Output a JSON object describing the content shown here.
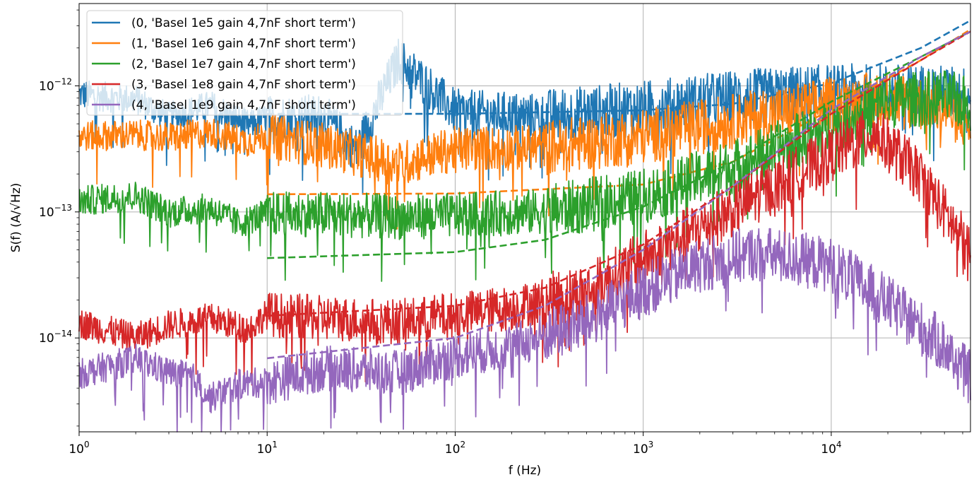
{
  "chart_data": {
    "type": "line",
    "title": "",
    "xlabel": "f (Hz)",
    "ylabel": "S(f) (A/√Hz)",
    "x_scale": "log",
    "y_scale": "log",
    "xlim": [
      1,
      55000
    ],
    "ylim": [
      1.8e-15,
      4.5e-12
    ],
    "x_ticks": [
      {
        "value": 1,
        "base": "10",
        "exp": "0"
      },
      {
        "value": 10,
        "base": "10",
        "exp": "1"
      },
      {
        "value": 100,
        "base": "10",
        "exp": "2"
      },
      {
        "value": 1000,
        "base": "10",
        "exp": "3"
      },
      {
        "value": 10000,
        "base": "10",
        "exp": "4"
      }
    ],
    "y_ticks": [
      {
        "value": 1e-14,
        "base": "10",
        "exp": "−14"
      },
      {
        "value": 1e-13,
        "base": "10",
        "exp": "−13"
      },
      {
        "value": 1e-12,
        "base": "10",
        "exp": "−12"
      }
    ],
    "grid": true,
    "legend_position": "top-left",
    "series": [
      {
        "name": "(0, 'Basel 1e5 gain 4,7nF short term')",
        "color": "#1f77b4",
        "measured": [
          [
            1,
            8.8e-13
          ],
          [
            2,
            8e-13
          ],
          [
            3,
            5.8e-13
          ],
          [
            5,
            7.2e-13
          ],
          [
            8,
            5e-13
          ],
          [
            10,
            5.8e-13
          ],
          [
            20,
            6e-13
          ],
          [
            30,
            3.2e-13
          ],
          [
            50,
            1.7e-12
          ],
          [
            100,
            6.5e-13
          ],
          [
            300,
            6e-13
          ],
          [
            1000,
            7e-13
          ],
          [
            3000,
            8.5e-13
          ],
          [
            10000,
            9.5e-13
          ],
          [
            30000,
            9.5e-13
          ],
          [
            55000,
            9e-13
          ]
        ],
        "model": [
          [
            10,
            6e-13
          ],
          [
            100,
            6e-13
          ],
          [
            1000,
            6.4e-13
          ],
          [
            3000,
            7.2e-13
          ],
          [
            10000,
            1.05e-12
          ],
          [
            30000,
            2e-12
          ],
          [
            55000,
            3.3e-12
          ]
        ]
      },
      {
        "name": "(1, 'Basel 1e6 gain 4,7nF short term')",
        "color": "#ff7f0e",
        "measured": [
          [
            1,
            4.1e-13
          ],
          [
            2,
            4.2e-13
          ],
          [
            3,
            4e-13
          ],
          [
            5,
            4.4e-13
          ],
          [
            8,
            3.7e-13
          ],
          [
            10,
            4.2e-13
          ],
          [
            20,
            3.5e-13
          ],
          [
            50,
            2.5e-13
          ],
          [
            100,
            3.3e-13
          ],
          [
            300,
            3.4e-13
          ],
          [
            1000,
            4.2e-13
          ],
          [
            3000,
            5.5e-13
          ],
          [
            10000,
            7.5e-13
          ],
          [
            20000,
            8.5e-13
          ],
          [
            40000,
            7e-13
          ],
          [
            55000,
            5e-13
          ]
        ],
        "model": [
          [
            10,
            1.38e-13
          ],
          [
            100,
            1.4e-13
          ],
          [
            1000,
            1.65e-13
          ],
          [
            3000,
            2.5e-13
          ],
          [
            10000,
            6.5e-13
          ],
          [
            30000,
            1.6e-12
          ],
          [
            55000,
            2.8e-12
          ]
        ]
      },
      {
        "name": "(2, 'Basel 1e7 gain 4,7nF short term')",
        "color": "#2ca02c",
        "measured": [
          [
            1,
            1.25e-13
          ],
          [
            2,
            1.38e-13
          ],
          [
            3,
            1.02e-13
          ],
          [
            5,
            1.1e-13
          ],
          [
            7,
            8.3e-14
          ],
          [
            10,
            1e-13
          ],
          [
            20,
            1e-13
          ],
          [
            50,
            9.5e-14
          ],
          [
            100,
            9.8e-14
          ],
          [
            300,
            1.05e-13
          ],
          [
            1000,
            1.4e-13
          ],
          [
            3000,
            2.4e-13
          ],
          [
            10000,
            5e-13
          ],
          [
            20000,
            8e-13
          ],
          [
            40000,
            8.5e-13
          ],
          [
            55000,
            7.5e-13
          ]
        ],
        "model": [
          [
            10,
            4.3e-14
          ],
          [
            100,
            4.8e-14
          ],
          [
            300,
            6e-14
          ],
          [
            1000,
            1.1e-13
          ],
          [
            3000,
            2.5e-13
          ],
          [
            10000,
            7.5e-13
          ],
          [
            30000,
            1.7e-12
          ],
          [
            55000,
            2.7e-12
          ]
        ]
      },
      {
        "name": "(3, 'Basel 1e8 gain 4,7nF short term')",
        "color": "#d62728",
        "measured": [
          [
            1,
            1.35e-14
          ],
          [
            2,
            1.03e-14
          ],
          [
            3,
            1.3e-14
          ],
          [
            5,
            1.48e-14
          ],
          [
            8,
            1.2e-14
          ],
          [
            10,
            1.6e-14
          ],
          [
            20,
            1.5e-14
          ],
          [
            50,
            1.4e-14
          ],
          [
            100,
            1.6e-14
          ],
          [
            200,
            1.8e-14
          ],
          [
            500,
            2.5e-14
          ],
          [
            1000,
            4.5e-14
          ],
          [
            3000,
            1.1e-13
          ],
          [
            10000,
            3e-13
          ],
          [
            17000,
            4.5e-13
          ],
          [
            30000,
            2e-13
          ],
          [
            55000,
            5e-14
          ]
        ],
        "model": [
          [
            10,
            1.5e-14
          ],
          [
            100,
            1.8e-14
          ],
          [
            300,
            2.5e-14
          ],
          [
            1000,
            5.5e-14
          ],
          [
            3000,
            1.6e-13
          ],
          [
            10000,
            6e-13
          ],
          [
            30000,
            1.6e-12
          ],
          [
            55000,
            2.7e-12
          ]
        ]
      },
      {
        "name": "(4, 'Basel 1e9 gain 4,7nF short term')",
        "color": "#9467bd",
        "measured": [
          [
            1,
            5.3e-15
          ],
          [
            2,
            7e-15
          ],
          [
            3,
            5.5e-15
          ],
          [
            4,
            5e-15
          ],
          [
            5,
            3.4e-15
          ],
          [
            7,
            4.4e-15
          ],
          [
            10,
            4.6e-15
          ],
          [
            20,
            6e-15
          ],
          [
            50,
            5.5e-15
          ],
          [
            100,
            7.5e-15
          ],
          [
            200,
            9e-15
          ],
          [
            500,
            1.4e-14
          ],
          [
            1000,
            2.5e-14
          ],
          [
            2000,
            4e-14
          ],
          [
            4000,
            5e-14
          ],
          [
            10000,
            4e-14
          ],
          [
            20000,
            2e-14
          ],
          [
            40000,
            9e-15
          ],
          [
            55000,
            5e-15
          ]
        ],
        "model": [
          [
            10,
            6.9e-15
          ],
          [
            100,
            1e-14
          ],
          [
            300,
            1.8e-14
          ],
          [
            1000,
            5e-14
          ],
          [
            3000,
            1.6e-13
          ],
          [
            10000,
            6.5e-13
          ],
          [
            30000,
            1.7e-12
          ],
          [
            55000,
            2.7e-12
          ]
        ]
      }
    ]
  }
}
